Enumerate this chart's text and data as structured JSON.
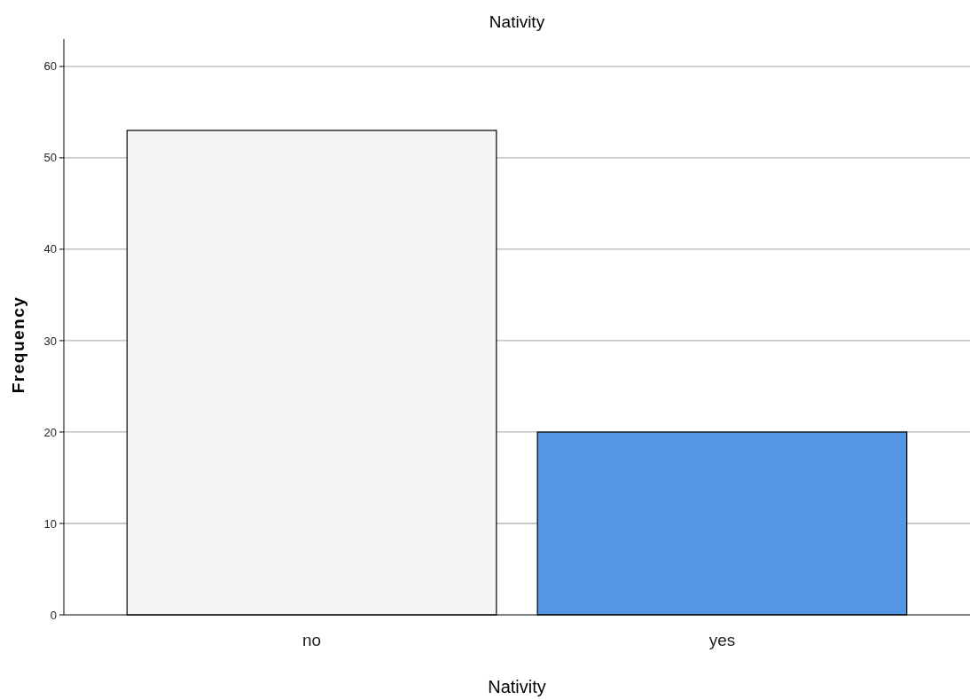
{
  "chart_data": {
    "type": "bar",
    "title": "Nativity",
    "xlabel": "Nativity",
    "ylabel": "Frequency",
    "categories": [
      "no",
      "yes"
    ],
    "values": [
      53,
      20
    ],
    "colors": [
      "#f5f5f5",
      "#5596e4"
    ],
    "ylim": [
      0,
      63
    ],
    "yticks": [
      0,
      10,
      20,
      30,
      40,
      50,
      60
    ],
    "grid": "y"
  }
}
